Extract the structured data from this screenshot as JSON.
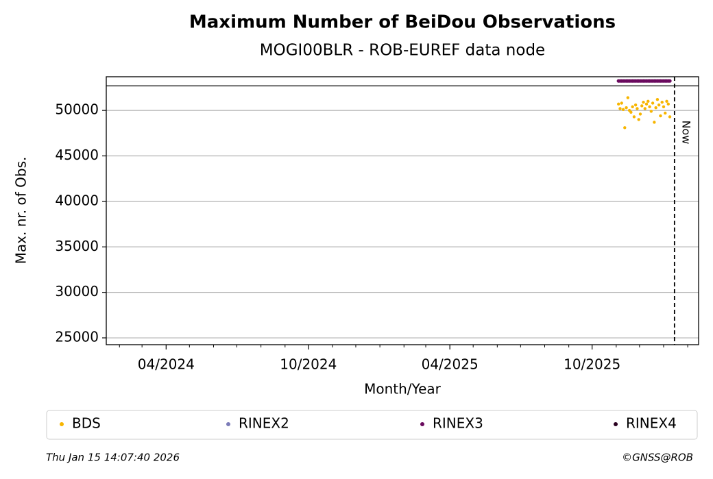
{
  "chart_data": {
    "type": "scatter",
    "title": "Maximum Number of BeiDou Observations",
    "subtitle": "MOGI00BLR - ROB-EUREF data node",
    "x_label": "Month/Year",
    "y_label": "Max. nr. of Obs.",
    "xlim": [
      "2024-01-15",
      "2026-02-15"
    ],
    "ylim": [
      24250,
      53700
    ],
    "xticks": [
      {
        "value": "2024-04-01",
        "label": "04/2024"
      },
      {
        "value": "2024-10-01",
        "label": "10/2024"
      },
      {
        "value": "2025-04-01",
        "label": "04/2025"
      },
      {
        "value": "2025-10-01",
        "label": "10/2025"
      }
    ],
    "xminor": [
      "2024-02-01",
      "2024-03-01",
      "2024-05-01",
      "2024-06-01",
      "2024-07-01",
      "2024-08-01",
      "2024-09-01",
      "2024-11-01",
      "2024-12-01",
      "2025-01-01",
      "2025-02-01",
      "2025-03-01",
      "2025-05-01",
      "2025-06-01",
      "2025-07-01",
      "2025-08-01",
      "2025-09-01",
      "2025-11-01",
      "2025-12-01",
      "2026-01-01",
      "2026-02-01"
    ],
    "yticks": [
      25000,
      30000,
      35000,
      40000,
      45000,
      50000
    ],
    "grid": true,
    "hline": 52700,
    "now": {
      "x": "2026-01-15",
      "label": "Now"
    },
    "x": [
      "2025-11-04",
      "2025-11-06",
      "2025-11-08",
      "2025-11-10",
      "2025-11-12",
      "2025-11-14",
      "2025-11-16",
      "2025-11-18",
      "2025-11-20",
      "2025-11-22",
      "2025-11-24",
      "2025-11-26",
      "2025-11-28",
      "2025-11-30",
      "2025-12-02",
      "2025-12-04",
      "2025-12-06",
      "2025-12-08",
      "2025-12-10",
      "2025-12-12",
      "2025-12-14",
      "2025-12-16",
      "2025-12-18",
      "2025-12-20",
      "2025-12-22",
      "2025-12-24",
      "2025-12-26",
      "2025-12-28",
      "2025-12-30",
      "2026-01-01",
      "2026-01-03",
      "2026-01-05",
      "2026-01-07",
      "2026-01-09"
    ],
    "series": [
      {
        "name": "BDS",
        "color": "#f7b500",
        "values": [
          50700,
          50200,
          50800,
          50100,
          48100,
          50300,
          51400,
          50000,
          49800,
          50400,
          49300,
          50600,
          50200,
          49000,
          49600,
          50500,
          50900,
          50200,
          50700,
          51000,
          50400,
          49900,
          50800,
          48700,
          50300,
          51200,
          50600,
          49400,
          50900,
          50400,
          49700,
          51000,
          50700,
          49300
        ]
      },
      {
        "name": "RINEX2",
        "color": "#7b7bb8",
        "values": []
      },
      {
        "name": "RINEX3",
        "color": "#6a0a5e",
        "values": [
          53240,
          53240,
          53240,
          53240,
          53240,
          53240,
          53240,
          53240,
          53240,
          53240,
          53240,
          53240,
          53240,
          53240,
          53240,
          53240,
          53240,
          53240,
          53240,
          53240,
          53240,
          53240,
          53240,
          53240,
          53240,
          53240,
          53240,
          53240,
          53240,
          53240,
          53240,
          53240,
          53240,
          53240
        ]
      },
      {
        "name": "RINEX4",
        "color": "#2a0020",
        "values": []
      }
    ],
    "legend": "bottom",
    "footer_left": "Thu Jan 15 14:07:40 2026",
    "footer_right": "©GNSS@ROB"
  }
}
